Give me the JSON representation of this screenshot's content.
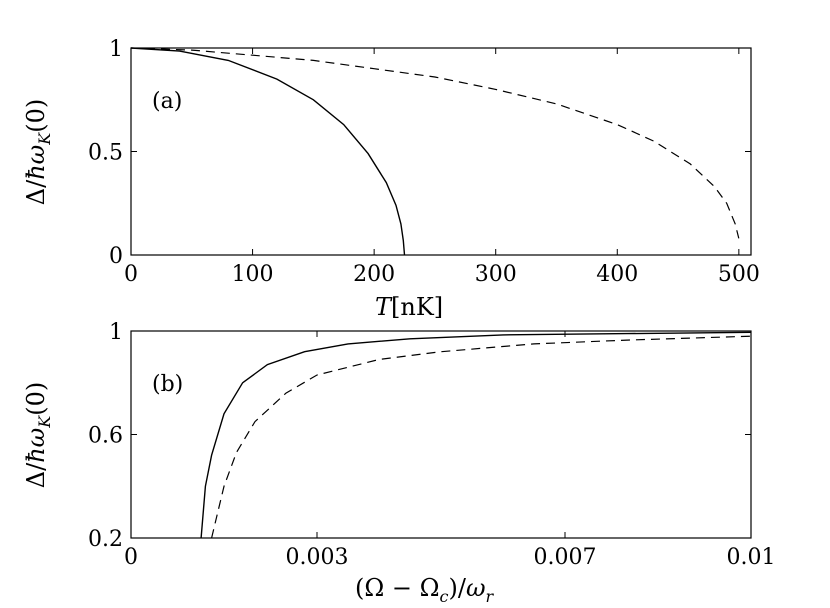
{
  "chart_data": [
    {
      "type": "line",
      "panel_label": "(a)",
      "xlabel": "T[nK]",
      "ylabel": "Δ/ħω_K(0)",
      "xlim": [
        0,
        510
      ],
      "ylim": [
        0,
        1
      ],
      "xticks": [
        0,
        100,
        200,
        300,
        400,
        500
      ],
      "yticks": [
        0,
        0.5,
        1
      ],
      "xtick_labels": [
        "0",
        "100",
        "200",
        "300",
        "400",
        "500"
      ],
      "ytick_labels": [
        "0",
        "0.5",
        "1"
      ],
      "grid": false,
      "series": [
        {
          "style": "solid",
          "x": [
            0,
            40,
            80,
            120,
            150,
            175,
            195,
            210,
            218,
            222,
            224,
            225
          ],
          "y": [
            1.0,
            0.985,
            0.94,
            0.85,
            0.75,
            0.63,
            0.49,
            0.35,
            0.24,
            0.15,
            0.07,
            0.0
          ]
        },
        {
          "style": "dashed",
          "x": [
            0,
            50,
            100,
            150,
            200,
            250,
            300,
            350,
            400,
            430,
            460,
            480,
            490,
            497,
            500
          ],
          "y": [
            1.0,
            0.99,
            0.965,
            0.94,
            0.9,
            0.86,
            0.8,
            0.73,
            0.63,
            0.55,
            0.44,
            0.33,
            0.25,
            0.15,
            0.08
          ]
        }
      ]
    },
    {
      "type": "line",
      "panel_label": "(b)",
      "xlabel": "(Ω − Ω_c)/ω_r",
      "ylabel": "Δ/ħω_K(0)",
      "xlim": [
        0,
        0.01
      ],
      "ylim": [
        0.2,
        1
      ],
      "xticks": [
        0,
        0.003,
        0.007,
        0.01
      ],
      "yticks": [
        0.2,
        0.6,
        1
      ],
      "xtick_labels": [
        "0",
        "0.003",
        "0.007",
        "0.01"
      ],
      "ytick_labels": [
        "0.2",
        "0.6",
        "1"
      ],
      "grid": false,
      "series": [
        {
          "style": "solid",
          "x": [
            0.00113,
            0.0012,
            0.0013,
            0.0015,
            0.0018,
            0.0022,
            0.0028,
            0.0035,
            0.0045,
            0.006,
            0.008,
            0.01
          ],
          "y": [
            0.2,
            0.4,
            0.52,
            0.68,
            0.8,
            0.87,
            0.92,
            0.95,
            0.97,
            0.985,
            0.99,
            0.995
          ]
        },
        {
          "style": "dashed",
          "x": [
            0.0013,
            0.0014,
            0.0015,
            0.0017,
            0.002,
            0.0025,
            0.003,
            0.004,
            0.005,
            0.0065,
            0.008,
            0.01
          ],
          "y": [
            0.2,
            0.3,
            0.4,
            0.53,
            0.65,
            0.76,
            0.83,
            0.89,
            0.92,
            0.95,
            0.965,
            0.98
          ]
        }
      ]
    }
  ]
}
